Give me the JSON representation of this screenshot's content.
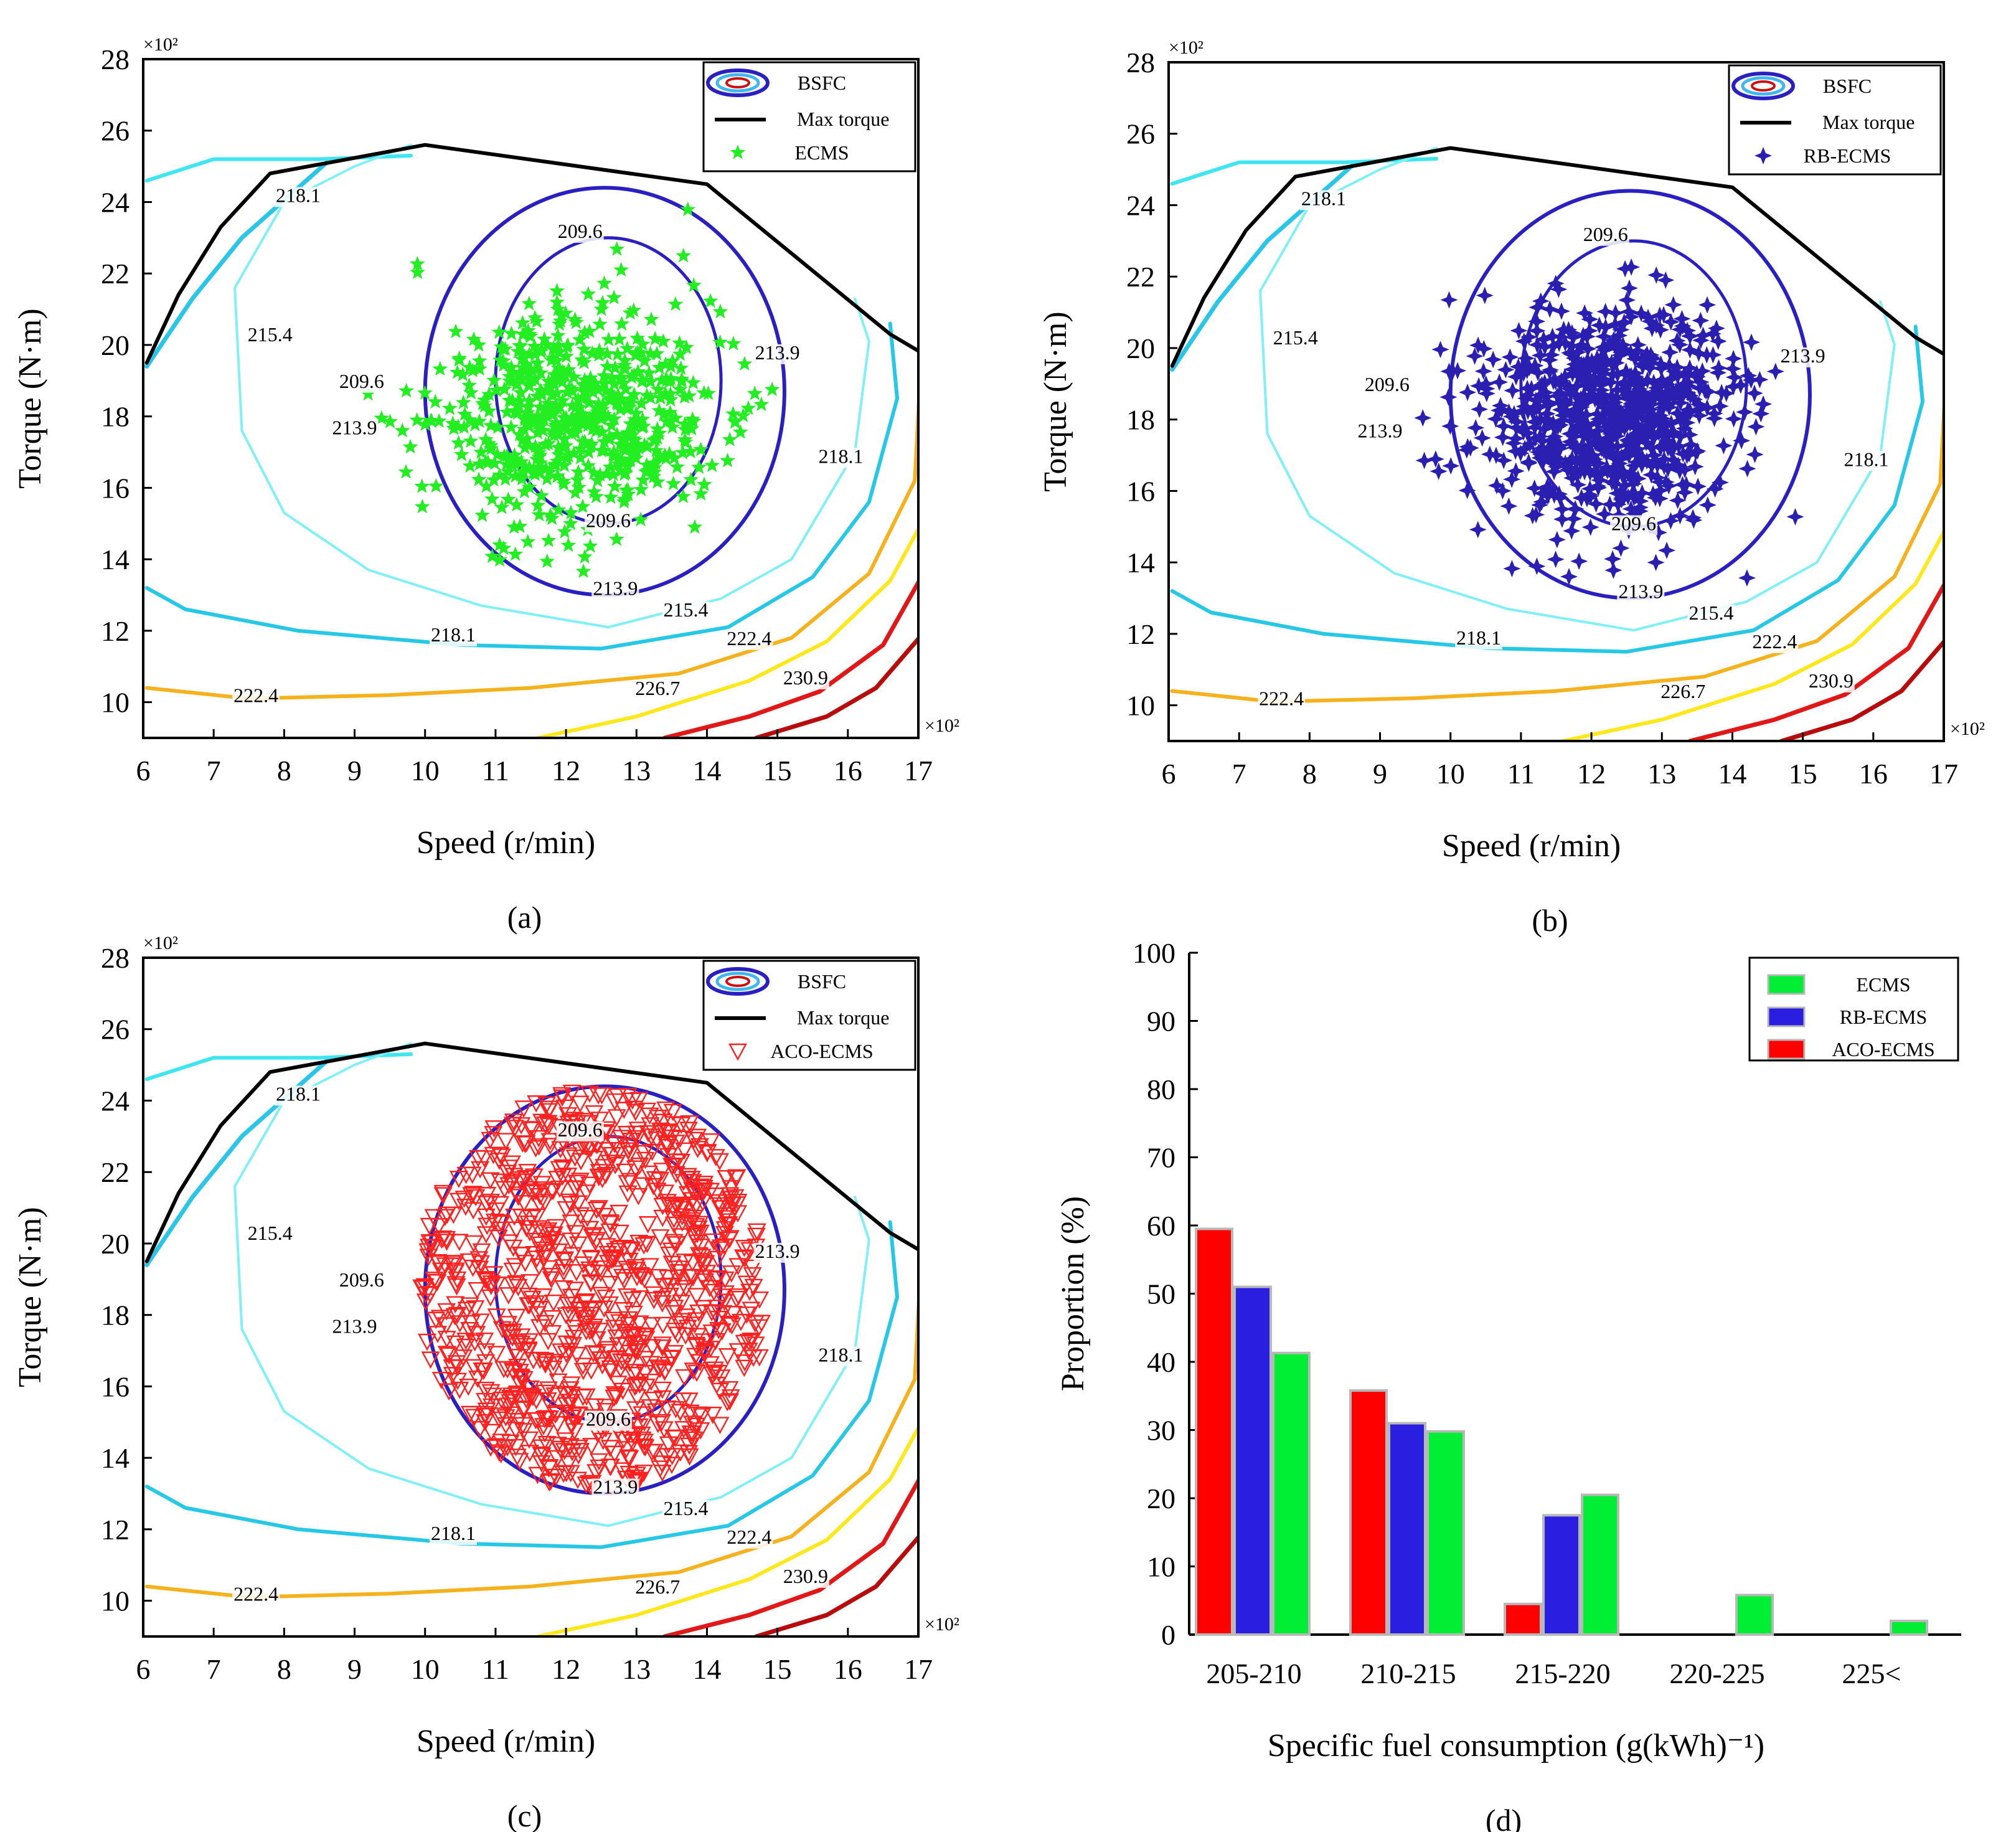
{
  "chart_data": [
    {
      "id": "a",
      "type": "scatter",
      "caption": "(a)",
      "xlabel": "Speed (r/min)",
      "ylabel": "Torque (N·m)",
      "x_multiplier": "×10²",
      "y_multiplier": "×10²",
      "xlim": [
        6,
        17
      ],
      "ylim": [
        9,
        28
      ],
      "xticks": [
        "6",
        "7",
        "8",
        "9",
        "10",
        "11",
        "12",
        "13",
        "14",
        "15",
        "16",
        "17"
      ],
      "yticks": [
        "10",
        "12",
        "14",
        "16",
        "18",
        "20",
        "22",
        "24",
        "26",
        "28"
      ],
      "legend": [
        "BSFC",
        "Max torque",
        "ECMS"
      ],
      "legend_position": "top-right",
      "series": [
        {
          "name": "ECMS",
          "marker": "star",
          "color": "#22ee22",
          "center": [
            12.2,
            18.0
          ],
          "spread": [
            2.0,
            3.2
          ],
          "count": 620,
          "seed": 11
        }
      ],
      "contour_labels": [
        "218.1",
        "215.4",
        "209.6",
        "213.9",
        "209.6",
        "213.9",
        "209.6",
        "218.1",
        "213.9",
        "215.4",
        "222.4",
        "218.1",
        "222.4",
        "226.7",
        "230.9"
      ]
    },
    {
      "id": "b",
      "type": "scatter",
      "caption": "(b)",
      "xlabel": "Speed (r/min)",
      "ylabel": "Torque (N·m)",
      "x_multiplier": "×10²",
      "y_multiplier": "×10²",
      "xlim": [
        6,
        17
      ],
      "ylim": [
        9,
        28
      ],
      "xticks": [
        "6",
        "7",
        "8",
        "9",
        "10",
        "11",
        "12",
        "13",
        "14",
        "15",
        "16",
        "17"
      ],
      "yticks": [
        "10",
        "12",
        "14",
        "16",
        "18",
        "20",
        "22",
        "24",
        "26",
        "28"
      ],
      "legend": [
        "BSFC",
        "Max torque",
        "RB-ECMS"
      ],
      "legend_position": "top-right",
      "series": [
        {
          "name": "RB-ECMS",
          "marker": "star4",
          "color": "#2a1fb0",
          "center": [
            12.2,
            18.2
          ],
          "spread": [
            1.75,
            3.0
          ],
          "count": 820,
          "seed": 23
        }
      ],
      "contour_labels": [
        "218.1",
        "215.4",
        "209.6",
        "213.9",
        "209.6",
        "213.9",
        "209.6",
        "218.1",
        "213.9",
        "215.4",
        "222.4",
        "218.1",
        "222.4",
        "226.7",
        "230.9"
      ]
    },
    {
      "id": "c",
      "type": "scatter",
      "caption": "(c)",
      "xlabel": "Speed (r/min)",
      "ylabel": "Torque (N·m)",
      "x_multiplier": "×10²",
      "y_multiplier": "×10²",
      "xlim": [
        6,
        17
      ],
      "ylim": [
        9,
        28
      ],
      "xticks": [
        "6",
        "7",
        "8",
        "9",
        "10",
        "11",
        "12",
        "13",
        "14",
        "15",
        "16",
        "17"
      ],
      "yticks": [
        "10",
        "12",
        "14",
        "16",
        "18",
        "20",
        "22",
        "24",
        "26",
        "28"
      ],
      "legend": [
        "BSFC",
        "Max torque",
        "ACO-ECMS"
      ],
      "legend_position": "top-right",
      "series": [
        {
          "name": "ACO-ECMS",
          "marker": "triangle-down",
          "color": "#ff2020",
          "center": [
            12.4,
            18.7
          ],
          "spread": [
            2.55,
            5.7
          ],
          "count": 1000,
          "seed": 37,
          "uniform": true
        }
      ],
      "contour_labels": [
        "218.1",
        "215.4",
        "209.6",
        "213.9",
        "209.6",
        "213.9",
        "209.6",
        "218.1",
        "213.9",
        "215.4",
        "222.4",
        "218.1",
        "222.4",
        "226.7",
        "230.9"
      ]
    },
    {
      "id": "d",
      "type": "bar",
      "caption": "(d)",
      "xlabel": "Specific fuel consumption (g(kWh)⁻¹)",
      "ylabel": "Proportion (%)",
      "ylim": [
        0,
        100
      ],
      "yticks": [
        "0",
        "10",
        "20",
        "30",
        "40",
        "50",
        "60",
        "70",
        "80",
        "90",
        "100"
      ],
      "categories": [
        "205-210",
        "210-215",
        "215-220",
        "220-225",
        "225<"
      ],
      "legend_position": "top-right",
      "legend": [
        "ECMS",
        "RB-ECMS",
        "ACO-ECMS"
      ],
      "series": [
        {
          "name": "ACO-ECMS",
          "color": "#ff0000",
          "values": [
            59.5,
            35.8,
            4.5,
            0,
            0
          ]
        },
        {
          "name": "RB-ECMS",
          "color": "#2a1fe0",
          "values": [
            51,
            31,
            17.5,
            0,
            0
          ]
        },
        {
          "name": "ECMS",
          "color": "#00ee33",
          "values": [
            41.3,
            29.8,
            20.5,
            5.8,
            2.0
          ]
        }
      ]
    }
  ]
}
